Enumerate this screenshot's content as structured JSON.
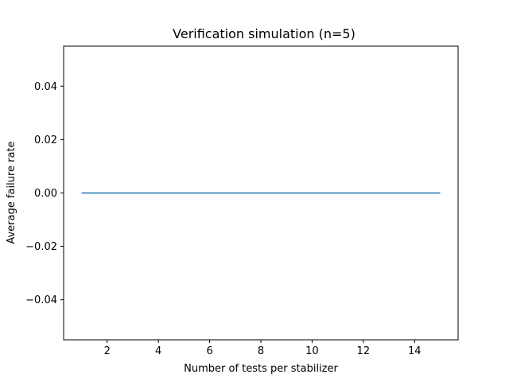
{
  "chart_data": {
    "type": "line",
    "title": "Verification simulation (n=5)",
    "xlabel": "Number of tests per stabilizer",
    "ylabel": "Average failure rate",
    "xlim": [
      0.3,
      15.7
    ],
    "ylim": [
      -0.055,
      0.055
    ],
    "xticks": [
      2,
      4,
      6,
      8,
      10,
      12,
      14
    ],
    "xtick_labels": [
      "2",
      "4",
      "6",
      "8",
      "10",
      "12",
      "14"
    ],
    "yticks": [
      -0.04,
      -0.02,
      0.0,
      0.02,
      0.04
    ],
    "ytick_labels": [
      "−0.04",
      "−0.02",
      "0.00",
      "0.02",
      "0.04"
    ],
    "grid": false,
    "series": [
      {
        "color": "#1f77b4",
        "x": [
          1,
          2,
          3,
          4,
          5,
          6,
          7,
          8,
          9,
          10,
          11,
          12,
          13,
          14,
          15
        ],
        "y": [
          0,
          0,
          0,
          0,
          0,
          0,
          0,
          0,
          0,
          0,
          0,
          0,
          0,
          0,
          0
        ]
      }
    ]
  }
}
